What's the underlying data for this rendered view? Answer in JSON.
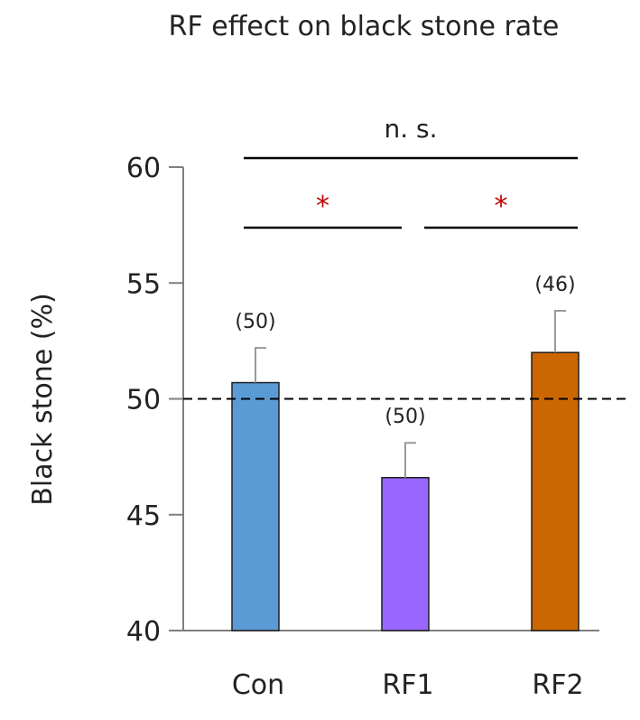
{
  "chart_data": {
    "type": "bar",
    "title": "RF effect  on black stone rate",
    "ylabel": "Black stone (%)",
    "xlabel": "",
    "ylim": [
      40,
      60
    ],
    "yticks": [
      40,
      45,
      50,
      55,
      60
    ],
    "reference_line": 50,
    "grid": false,
    "legend": "none",
    "categories": [
      "Con",
      "RF1",
      "RF2"
    ],
    "values": [
      50.7,
      46.6,
      52.0
    ],
    "error_upper": [
      1.5,
      1.5,
      1.8
    ],
    "n_labels": [
      "(50)",
      "(50)",
      "(46)"
    ],
    "colors": [
      "#5b9bd5",
      "#9966ff",
      "#cc6600"
    ],
    "significance": [
      {
        "from": 0,
        "to": 2,
        "label": "n. s."
      },
      {
        "from": 0,
        "to": 1,
        "label": "*"
      },
      {
        "from": 1,
        "to": 2,
        "label": "*"
      }
    ]
  }
}
